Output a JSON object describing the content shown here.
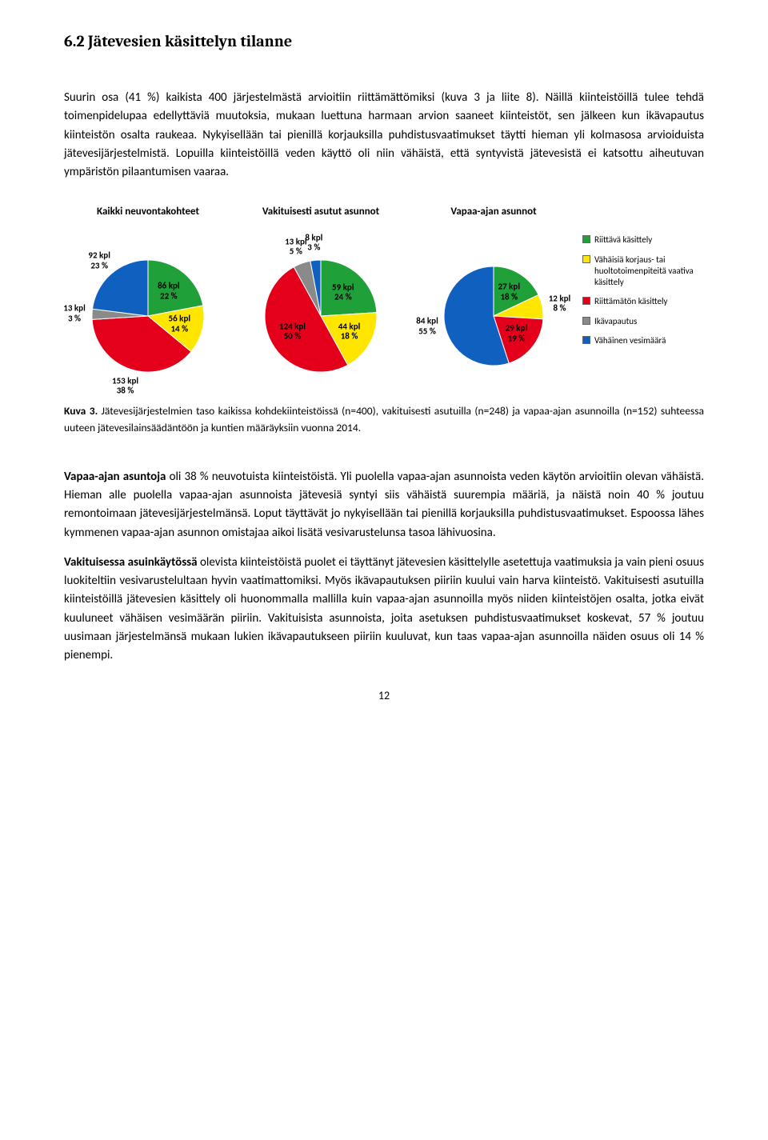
{
  "heading": "6.2   Jätevesien käsittelyn tilanne",
  "para1": "Suurin osa (41 %) kaikista 400 järjestelmästä arvioitiin riittämättömiksi (kuva 3 ja liite 8). Näillä kiinteistöillä tulee tehdä toimenpidelupaa edellyttäviä muutoksia, mukaan luettuna harmaan arvion saaneet kiinteistöt, sen jälkeen kun ikävapautus kiinteistön osalta raukeaa. Nykyisellään tai pienillä korjauksilla puhdistusvaatimukset täytti hieman yli kolmasosa arvioiduista jätevesijärjestelmistä. Lopuilla kiinteistöillä veden käyttö oli niin vähäistä, että syntyvistä jätevesistä ei katsottu aiheutuvan ympäristön pilaantumisen vaaraa.",
  "caption_bold": "Kuva 3.",
  "caption_rest": " Jätevesijärjestelmien taso kaikissa kohdekiinteistöissä (n=400), vakituisesti asutuilla (n=248) ja vapaa-ajan asunnoilla (n=152) suhteessa uuteen jätevesilainsäädäntöön ja kuntien määräyksiin vuonna 2014.",
  "para2_bold": "Vapaa-ajan asuntoja",
  "para2_rest": " oli 38 % neuvotuista kiinteistöistä. Yli puolella vapaa-ajan asunnoista veden käytön arvioitiin olevan vähäistä. Hieman alle puolella vapaa-ajan asunnoista jätevesiä syntyi siis vähäistä suurempia määriä, ja näistä noin 40 % joutuu remontoimaan jätevesijärjestelmänsä. Loput täyttävät jo nykyisellään tai pienillä korjauksilla puhdistusvaatimukset. Espoossa lähes kymmenen vapaa-ajan asunnon omistajaa aikoi lisätä vesivarustelunsa tasoa lähivuosina.",
  "para3_bold": "Vakituisessa asuinkäytössä",
  "para3_rest": " olevista kiinteistöistä puolet ei täyttänyt jätevesien käsittelylle asetettuja vaatimuksia ja vain pieni osuus luokiteltiin vesivarustelultaan hyvin vaatimattomiksi. Myös ikävapautuksen piiriin kuului vain harva kiinteistö. Vakituisesti asutuilla kiinteistöillä jätevesien käsittely oli huonommalla mallilla kuin vapaa-ajan asunnoilla myös niiden kiinteistöjen osalta, jotka eivät kuuluneet vähäisen vesimäärän piiriin. Vakituisista asunnoista, joita asetuksen puhdistusvaatimukset koskevat, 57 % joutuu uusimaan järjestelmänsä mukaan lukien ikävapautukseen piiriin kuuluvat, kun taas vapaa-ajan asunnoilla näiden osuus oli 14 % pienempi.",
  "page_number": "12",
  "colors": {
    "green": "#1fa038",
    "yellow": "#ffe600",
    "red": "#e4001b",
    "grey": "#8a8a8a",
    "blue": "#1060c0",
    "label": "#000000"
  },
  "legend": [
    {
      "label": "Riittävä käsittely",
      "colorKey": "green"
    },
    {
      "label": "Vähäisiä korjaus- tai huoltotoimenpiteitä vaativa käsittely",
      "colorKey": "yellow"
    },
    {
      "label": "Riittämätön käsittely",
      "colorKey": "red"
    },
    {
      "label": "Ikävapautus",
      "colorKey": "grey"
    },
    {
      "label": "Vähäinen vesimäärä",
      "colorKey": "blue"
    }
  ],
  "charts": [
    {
      "title": "Kaikki neuvontakohteet",
      "radius": 70,
      "slices": [
        {
          "pct": 22,
          "colorKey": "green",
          "kpl": 86,
          "label": "86 kpl\n22 %",
          "inside": true
        },
        {
          "pct": 14,
          "colorKey": "yellow",
          "kpl": 56,
          "label": "56 kpl\n14 %",
          "inside": true
        },
        {
          "pct": 38,
          "colorKey": "red",
          "kpl": 153,
          "label": "153 kpl\n38 %",
          "inside": false
        },
        {
          "pct": 3,
          "colorKey": "grey",
          "kpl": 13,
          "label": "13 kpl\n3 %",
          "inside": false
        },
        {
          "pct": 23,
          "colorKey": "blue",
          "kpl": 92,
          "label": "92 kpl\n23 %",
          "inside": false
        }
      ]
    },
    {
      "title": "Vakituisesti asutut asunnot",
      "radius": 70,
      "slices": [
        {
          "pct": 24,
          "colorKey": "green",
          "kpl": 59,
          "label": "59 kpl\n24 %",
          "inside": true
        },
        {
          "pct": 18,
          "colorKey": "yellow",
          "kpl": 44,
          "label": "44 kpl\n18 %",
          "inside": true
        },
        {
          "pct": 50,
          "colorKey": "red",
          "kpl": 124,
          "label": "124 kpl\n50 %",
          "inside": true
        },
        {
          "pct": 5,
          "colorKey": "grey",
          "kpl": 13,
          "label": "13 kpl\n5 %",
          "inside": false
        },
        {
          "pct": 3,
          "colorKey": "blue",
          "kpl": 8,
          "label": "8 kpl\n3 %",
          "inside": false
        }
      ]
    },
    {
      "title": "Vapaa-ajan asunnot",
      "radius": 62,
      "slices": [
        {
          "pct": 18,
          "colorKey": "green",
          "kpl": 27,
          "label": "27 kpl\n18 %",
          "inside": true
        },
        {
          "pct": 8,
          "colorKey": "yellow",
          "kpl": 12,
          "label": "12 kpl\n8 %",
          "inside": false
        },
        {
          "pct": 19,
          "colorKey": "red",
          "kpl": 29,
          "label": "29 kpl\n19 %",
          "inside": true
        },
        {
          "pct": 55,
          "colorKey": "blue",
          "kpl": 84,
          "label": "84 kpl\n55 %",
          "inside": false
        }
      ]
    }
  ]
}
